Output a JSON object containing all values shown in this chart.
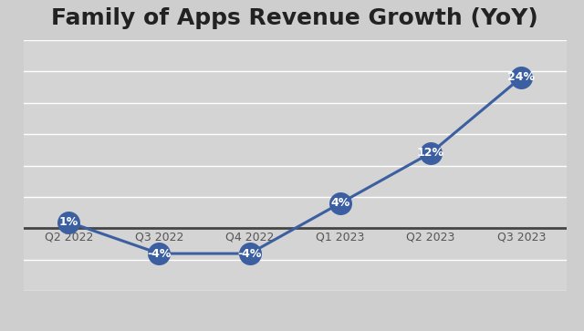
{
  "title": "Family of Apps Revenue Growth (YoY)",
  "categories": [
    "Q2 2022",
    "Q3 2022",
    "Q4 2022",
    "Q1 2023",
    "Q2 2023",
    "Q3 2023"
  ],
  "values": [
    1,
    -4,
    -4,
    4,
    12,
    24
  ],
  "labels": [
    "1%",
    "-4%",
    "-4%",
    "4%",
    "12%",
    "24%"
  ],
  "line_color": "#3B5FA0",
  "marker_color": "#3B5FA0",
  "marker_size": 18,
  "line_width": 2.2,
  "title_fontsize": 18,
  "label_fontsize": 9,
  "tick_fontsize": 9,
  "background_color": "#D8D8D8",
  "zero_line_color": "#444444",
  "grid_color": "#FFFFFF",
  "ylim": [
    -10,
    30
  ],
  "label_color": "#FFFFFF"
}
